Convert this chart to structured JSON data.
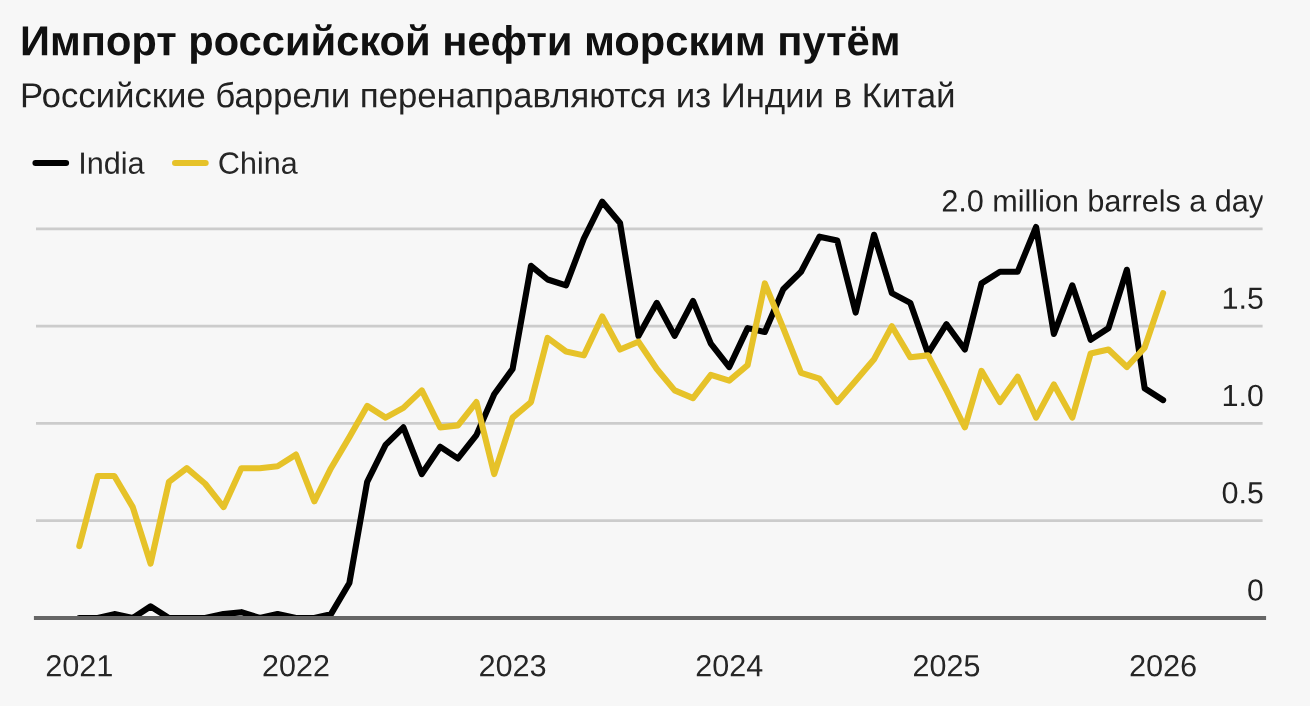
{
  "chart_data": {
    "type": "line",
    "title": "Импорт российской нефти морским путём",
    "subtitle": "Российские баррели перенаправляются из Индии в Китай",
    "x": [
      "2021-01",
      "2021-02",
      "2021-03",
      "2021-04",
      "2021-05",
      "2021-06",
      "2021-07",
      "2021-08",
      "2021-09",
      "2021-10",
      "2021-11",
      "2021-12",
      "2022-01",
      "2022-02",
      "2022-03",
      "2022-04",
      "2022-05",
      "2022-06",
      "2022-07",
      "2022-08",
      "2022-09",
      "2022-10",
      "2022-11",
      "2022-12",
      "2023-01",
      "2023-02",
      "2023-03",
      "2023-04",
      "2023-05",
      "2023-06",
      "2023-07",
      "2023-08",
      "2023-09",
      "2023-10",
      "2023-11",
      "2023-12",
      "2024-01",
      "2024-02",
      "2024-03",
      "2024-04",
      "2024-05",
      "2024-06",
      "2024-07",
      "2024-08",
      "2024-09",
      "2024-10",
      "2024-11",
      "2024-12",
      "2025-01",
      "2025-02",
      "2025-03",
      "2025-04",
      "2025-05",
      "2025-06",
      "2025-07",
      "2025-08",
      "2025-09",
      "2025-10",
      "2025-11",
      "2025-12",
      "2026-01"
    ],
    "series": [
      {
        "name": "India",
        "color": "#000000",
        "values": [
          0,
          0,
          0.02,
          0,
          0.06,
          0,
          0,
          0,
          0.02,
          0.03,
          0,
          0.02,
          0,
          0,
          0.02,
          0.18,
          0.7,
          0.89,
          0.98,
          0.74,
          0.88,
          0.82,
          0.94,
          1.15,
          1.28,
          1.81,
          1.74,
          1.71,
          1.95,
          2.14,
          2.03,
          1.45,
          1.62,
          1.45,
          1.63,
          1.41,
          1.29,
          1.49,
          1.47,
          1.69,
          1.78,
          1.96,
          1.94,
          1.57,
          1.97,
          1.67,
          1.62,
          1.36,
          1.51,
          1.38,
          1.72,
          1.78,
          1.78,
          2.01,
          1.46,
          1.71,
          1.43,
          1.49,
          1.79,
          1.18,
          1.12
        ]
      },
      {
        "name": "China",
        "color": "#e6c229",
        "values": [
          0.37,
          0.73,
          0.73,
          0.57,
          0.28,
          0.7,
          0.77,
          0.69,
          0.57,
          0.77,
          0.77,
          0.78,
          0.84,
          0.6,
          0.77,
          0.93,
          1.09,
          1.03,
          1.08,
          1.17,
          0.98,
          0.99,
          1.11,
          0.74,
          1.03,
          1.11,
          1.44,
          1.37,
          1.35,
          1.55,
          1.38,
          1.42,
          1.28,
          1.17,
          1.13,
          1.25,
          1.22,
          1.3,
          1.72,
          1.49,
          1.26,
          1.23,
          1.11,
          1.22,
          1.33,
          1.5,
          1.34,
          1.35,
          1.17,
          0.98,
          1.27,
          1.11,
          1.24,
          1.03,
          1.2,
          1.03,
          1.36,
          1.38,
          1.29,
          1.39,
          1.67
        ]
      }
    ],
    "xlim": [
      "2020-10-20",
      "2026-06-20"
    ],
    "xticks": [
      {
        "value": "2021-01-01",
        "label": "2021"
      },
      {
        "value": "2022-01-01",
        "label": "2022"
      },
      {
        "value": "2023-01-01",
        "label": "2023"
      },
      {
        "value": "2024-01-01",
        "label": "2024"
      },
      {
        "value": "2025-01-01",
        "label": "2025"
      },
      {
        "value": "2026-01-01",
        "label": "2026"
      }
    ],
    "ylim": [
      0,
      2.2
    ],
    "yticks": [
      0,
      0.5,
      {
        "value": 1,
        "label": "1.0"
      },
      1.5,
      {
        "value": 2,
        "label": "2.0 million barrels a day"
      }
    ],
    "grid": "y",
    "legend": "top left",
    "marker": "none",
    "line_style": "solid"
  }
}
